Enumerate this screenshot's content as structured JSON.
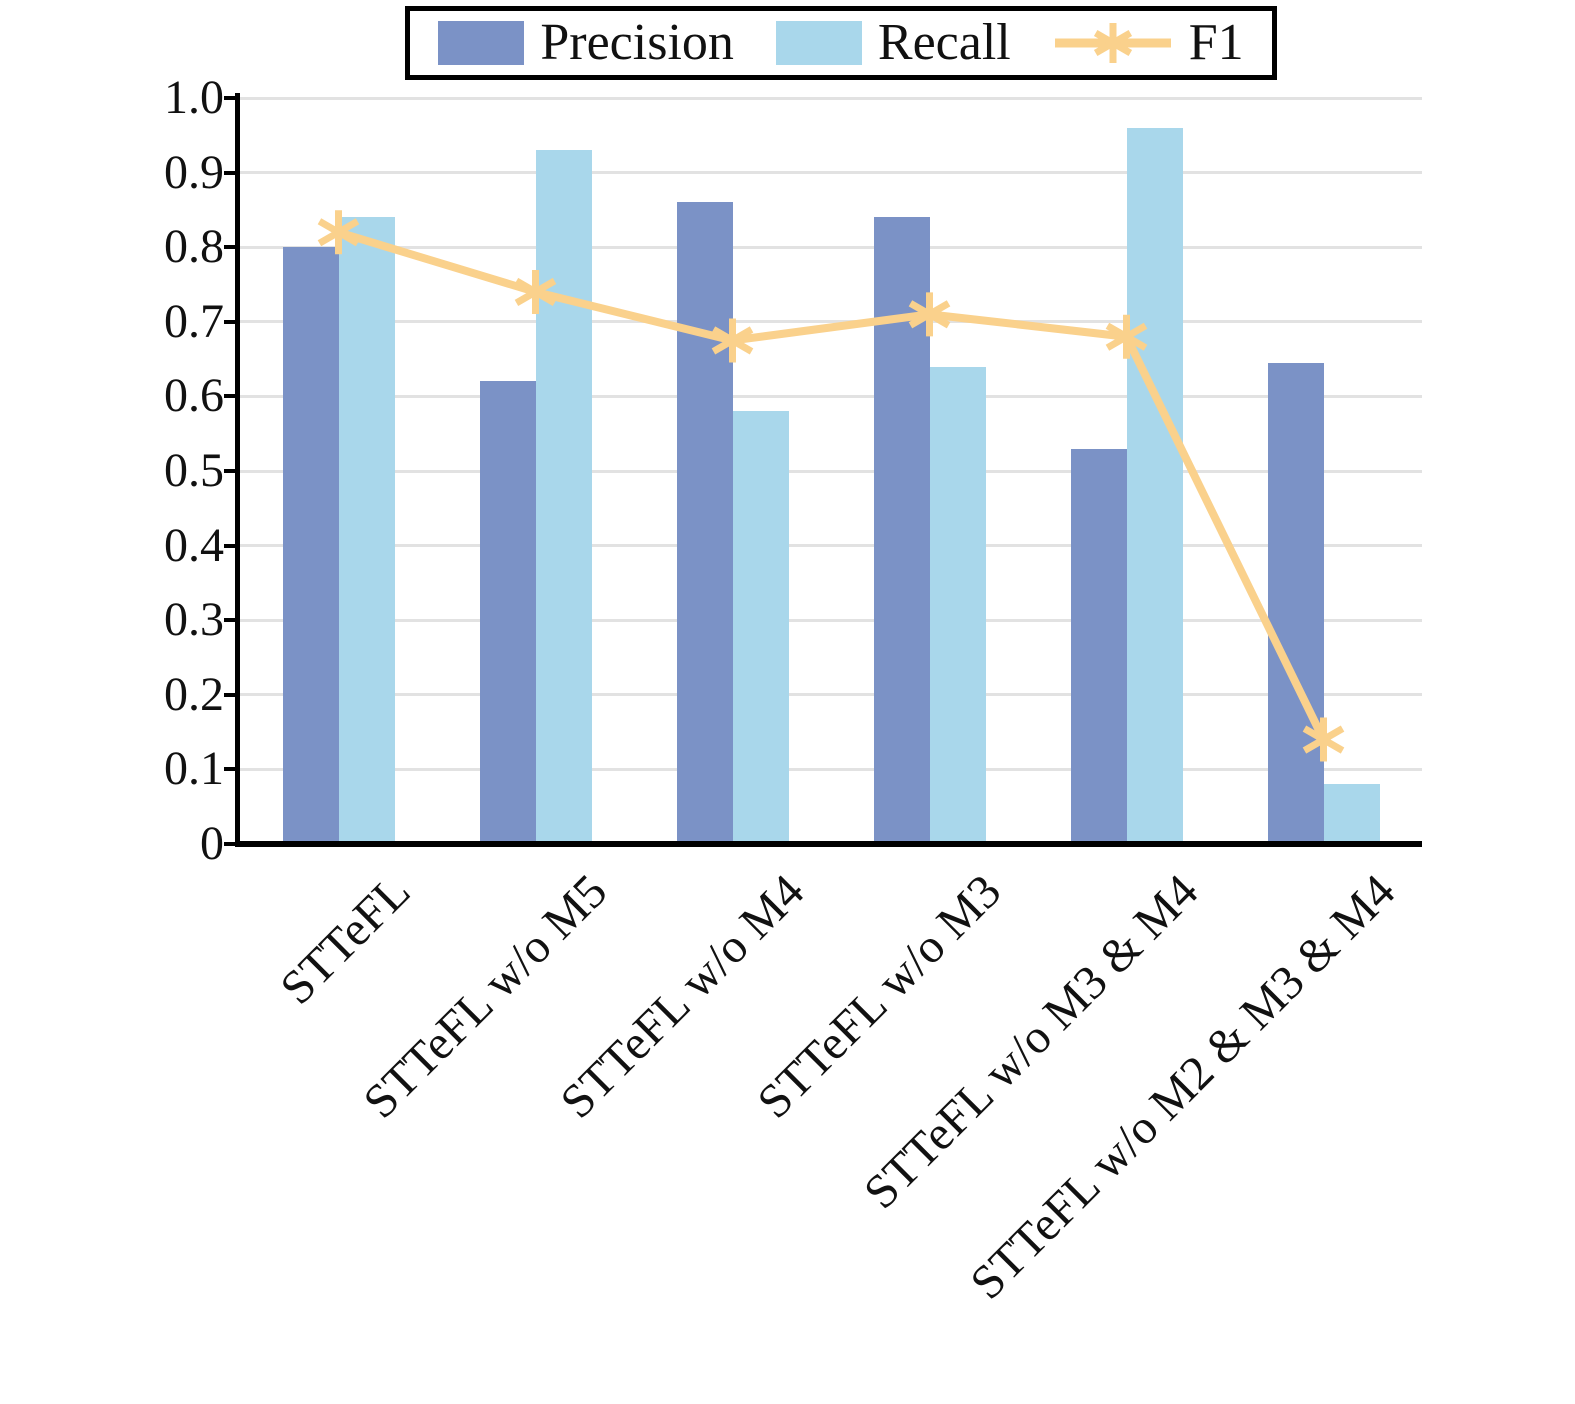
{
  "legend": {
    "items": [
      {
        "label": "Precision",
        "swatch": "bar"
      },
      {
        "label": "Recall",
        "swatch": "bar"
      },
      {
        "label": "F1",
        "swatch": "line-asterisk"
      }
    ]
  },
  "chart_data": {
    "type": "bar",
    "title": "",
    "xlabel": "",
    "ylabel": "",
    "categories": [
      "STTeFL",
      "STTeFL w/o M5",
      "STTeFL w/o M4",
      "STTeFL w/o M3",
      "STTeFL w/o M3 & M4",
      "STTeFL w/o M2 & M3 & M4"
    ],
    "series": [
      {
        "name": "Precision",
        "type": "bar",
        "color": "#7B92C6",
        "values": [
          0.8,
          0.62,
          0.86,
          0.84,
          0.53,
          0.645
        ]
      },
      {
        "name": "Recall",
        "type": "bar",
        "color": "#A9D7EB",
        "values": [
          0.84,
          0.93,
          0.58,
          0.64,
          0.96,
          0.08
        ]
      },
      {
        "name": "F1",
        "type": "line",
        "color": "#FAD18C",
        "marker": "asterisk",
        "values": [
          0.82,
          0.74,
          0.675,
          0.71,
          0.68,
          0.14
        ]
      }
    ],
    "ylim": [
      0,
      1.0
    ],
    "yticks": [
      "0",
      "0.1",
      "0.2",
      "0.3",
      "0.4",
      "0.5",
      "0.6",
      "0.7",
      "0.8",
      "0.9",
      "1.0"
    ],
    "xtick_rotation_deg": 45,
    "grid": true,
    "grid_color": "#E2E2E2",
    "axis_color": "#000000",
    "legend_position": "top-center",
    "background": "#FFFFFF"
  }
}
